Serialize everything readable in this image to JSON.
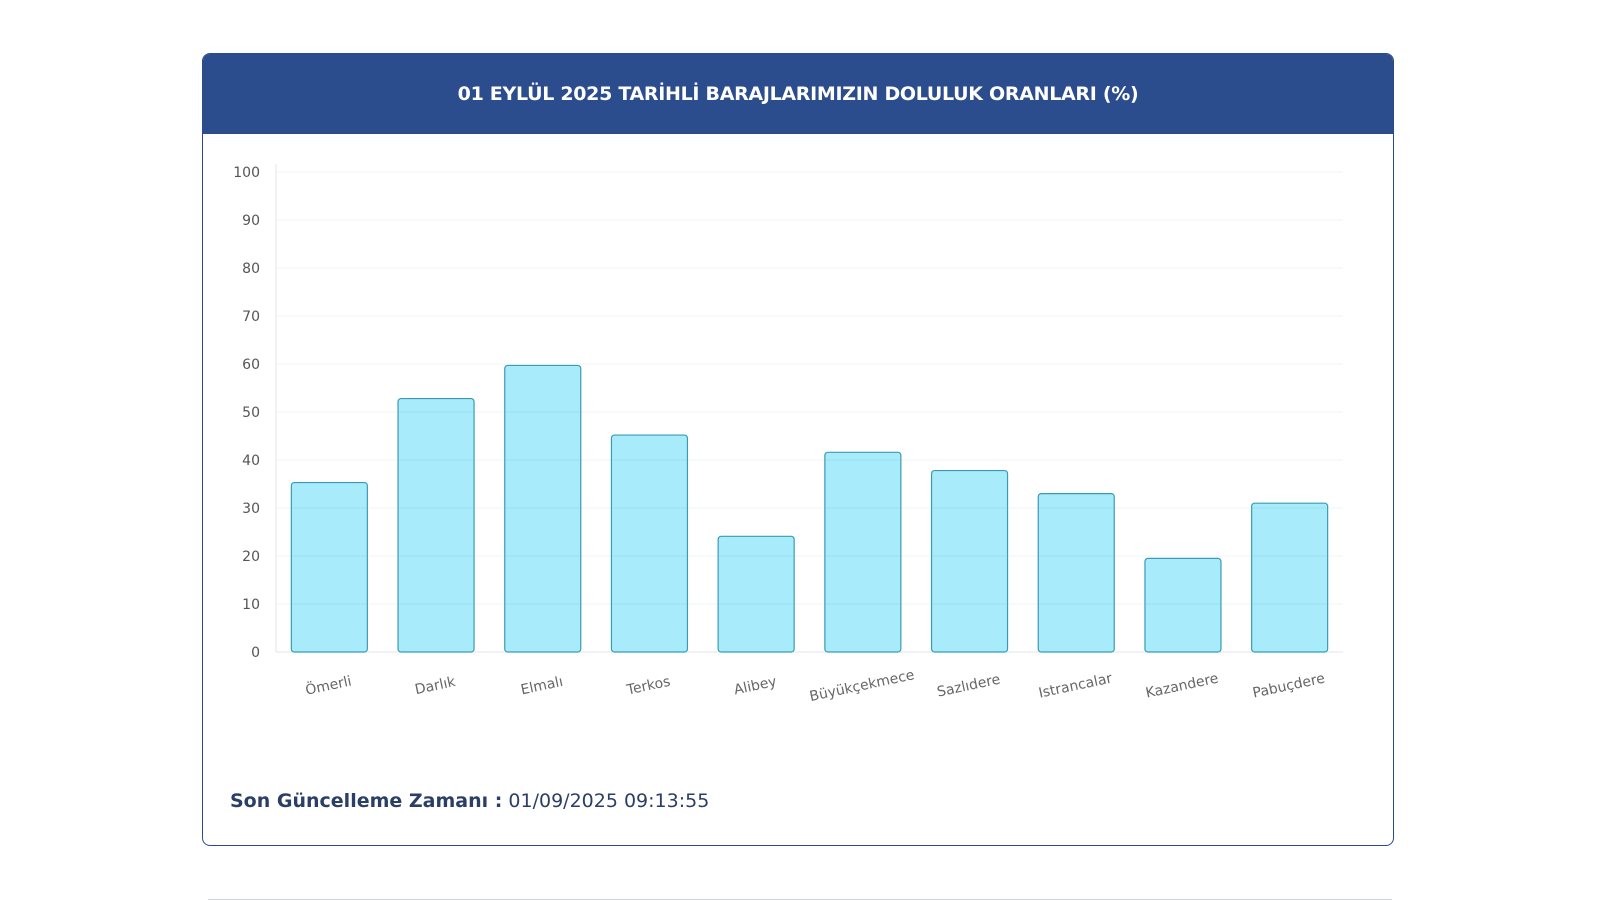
{
  "header": {
    "title": "01 EYLÜL 2025 TARİHLİ BARAJLARIMIZIN DOLULUK ORANLARI (%)"
  },
  "footer": {
    "update_label": "Son Güncelleme Zamanı :",
    "update_value": "01/09/2025 09:13:55"
  },
  "colors": {
    "header_bg": "#2b4c8d",
    "bar_fill": "#a8ecfb",
    "bar_stroke": "#3a9bb5"
  },
  "chart_data": {
    "type": "bar",
    "title": "01 EYLÜL 2025 TARİHLİ BARAJLARIMIZIN DOLULUK ORANLARI (%)",
    "categories": [
      "Ömerli",
      "Darlık",
      "Elmalı",
      "Terkos",
      "Alibey",
      "Büyükçekmece",
      "Sazlıdere",
      "Istrancalar",
      "Kazandere",
      "Pabuçdere"
    ],
    "values": [
      35.3,
      52.8,
      59.7,
      45.2,
      24.1,
      41.6,
      37.8,
      33.0,
      19.5,
      31.0
    ],
    "ylim": [
      0,
      100
    ],
    "yticks": [
      0,
      10,
      20,
      30,
      40,
      50,
      60,
      70,
      80,
      90,
      100
    ],
    "xlabel": "",
    "ylabel": "",
    "grid": true,
    "legend": "none"
  }
}
